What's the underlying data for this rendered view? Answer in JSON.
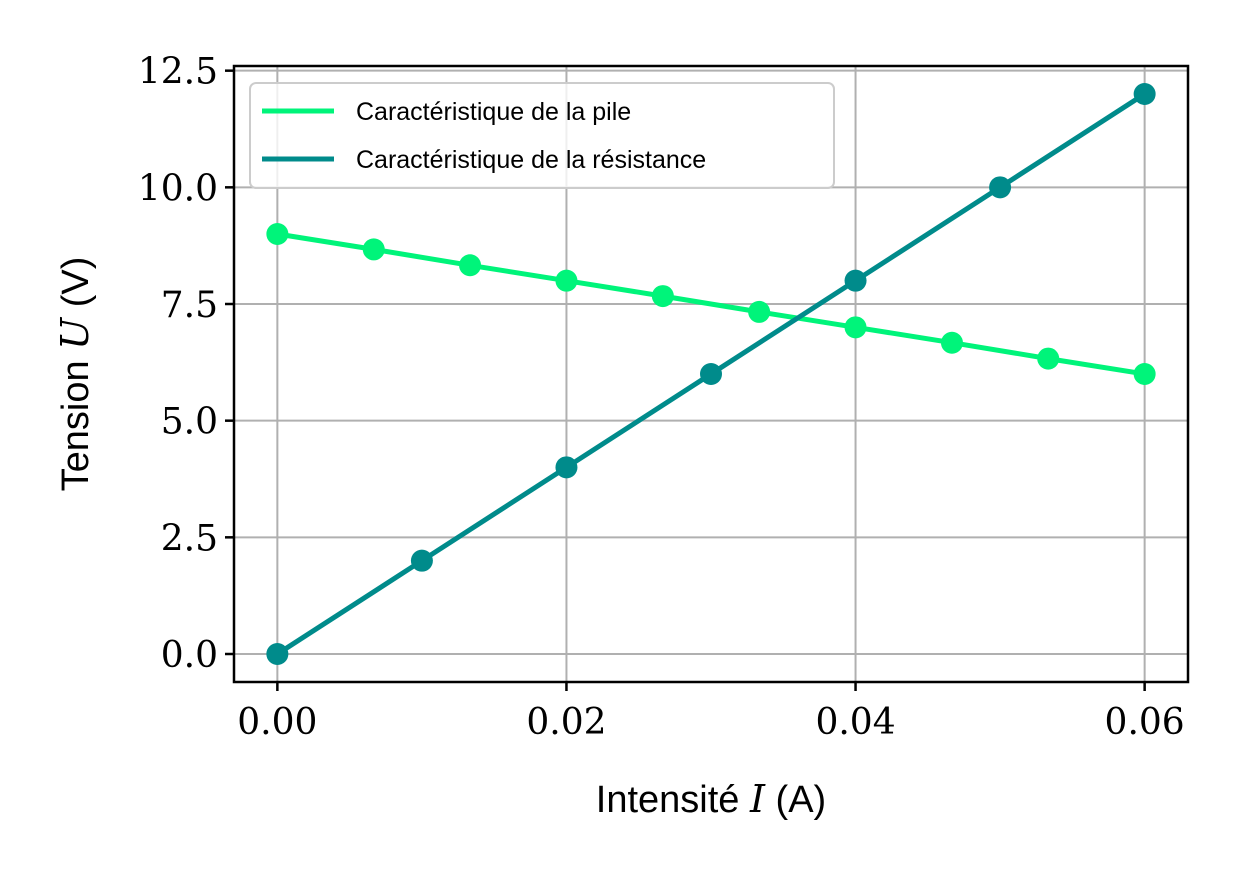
{
  "chart_data": {
    "type": "line",
    "xlabel": {
      "prefix": "Intensité ",
      "var": "I",
      "suffix": " (A)"
    },
    "ylabel": {
      "prefix": "Tension ",
      "var": "U",
      "suffix": " (V)"
    },
    "xlim": [
      -0.003,
      0.063
    ],
    "ylim": [
      -0.6,
      12.6
    ],
    "xticks": [
      0.0,
      0.02,
      0.04,
      0.06
    ],
    "xtick_labels": [
      "0.00",
      "0.02",
      "0.04",
      "0.06"
    ],
    "yticks": [
      0.0,
      2.5,
      5.0,
      7.5,
      10.0,
      12.5
    ],
    "ytick_labels": [
      "0.0",
      "2.5",
      "5.0",
      "7.5",
      "10.0",
      "12.5"
    ],
    "grid": true,
    "legend_position": "upper left",
    "series": [
      {
        "name": "Caractéristique de la pile",
        "color": "#00f47a",
        "x": [
          0.0,
          0.00667,
          0.01333,
          0.02,
          0.02667,
          0.03333,
          0.04,
          0.04667,
          0.05333,
          0.06
        ],
        "y": [
          9.0,
          8.67,
          8.33,
          8.0,
          7.67,
          7.33,
          7.0,
          6.67,
          6.33,
          6.0
        ]
      },
      {
        "name": "Caractéristique de la résistance",
        "color": "#008b8b",
        "x": [
          0.0,
          0.01,
          0.02,
          0.03,
          0.04,
          0.05,
          0.06
        ],
        "y": [
          0.0,
          2.0,
          4.0,
          6.0,
          8.0,
          10.0,
          12.0
        ]
      }
    ]
  }
}
